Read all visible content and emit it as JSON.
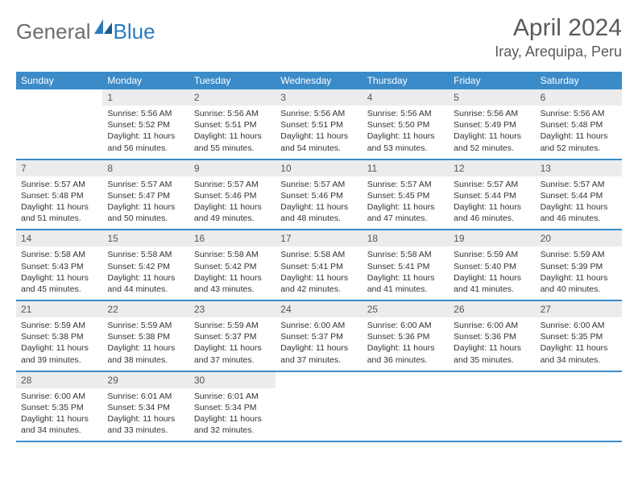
{
  "logo": {
    "general": "General",
    "blue": "Blue"
  },
  "title": "April 2024",
  "location": "Iray, Arequipa, Peru",
  "colors": {
    "header_bg": "#3b8bc9",
    "header_text": "#ffffff",
    "daynum_bg": "#ececec",
    "daynum_text": "#555555",
    "body_text": "#333333",
    "title_text": "#5a5a5a",
    "logo_general": "#6d6d6d",
    "logo_blue": "#2c7bbf",
    "week_border": "#3b8bc9"
  },
  "day_labels": [
    "Sunday",
    "Monday",
    "Tuesday",
    "Wednesday",
    "Thursday",
    "Friday",
    "Saturday"
  ],
  "weeks": [
    [
      null,
      {
        "n": "1",
        "sr": "Sunrise: 5:56 AM",
        "ss": "Sunset: 5:52 PM",
        "dl": "Daylight: 11 hours and 56 minutes."
      },
      {
        "n": "2",
        "sr": "Sunrise: 5:56 AM",
        "ss": "Sunset: 5:51 PM",
        "dl": "Daylight: 11 hours and 55 minutes."
      },
      {
        "n": "3",
        "sr": "Sunrise: 5:56 AM",
        "ss": "Sunset: 5:51 PM",
        "dl": "Daylight: 11 hours and 54 minutes."
      },
      {
        "n": "4",
        "sr": "Sunrise: 5:56 AM",
        "ss": "Sunset: 5:50 PM",
        "dl": "Daylight: 11 hours and 53 minutes."
      },
      {
        "n": "5",
        "sr": "Sunrise: 5:56 AM",
        "ss": "Sunset: 5:49 PM",
        "dl": "Daylight: 11 hours and 52 minutes."
      },
      {
        "n": "6",
        "sr": "Sunrise: 5:56 AM",
        "ss": "Sunset: 5:48 PM",
        "dl": "Daylight: 11 hours and 52 minutes."
      }
    ],
    [
      {
        "n": "7",
        "sr": "Sunrise: 5:57 AM",
        "ss": "Sunset: 5:48 PM",
        "dl": "Daylight: 11 hours and 51 minutes."
      },
      {
        "n": "8",
        "sr": "Sunrise: 5:57 AM",
        "ss": "Sunset: 5:47 PM",
        "dl": "Daylight: 11 hours and 50 minutes."
      },
      {
        "n": "9",
        "sr": "Sunrise: 5:57 AM",
        "ss": "Sunset: 5:46 PM",
        "dl": "Daylight: 11 hours and 49 minutes."
      },
      {
        "n": "10",
        "sr": "Sunrise: 5:57 AM",
        "ss": "Sunset: 5:46 PM",
        "dl": "Daylight: 11 hours and 48 minutes."
      },
      {
        "n": "11",
        "sr": "Sunrise: 5:57 AM",
        "ss": "Sunset: 5:45 PM",
        "dl": "Daylight: 11 hours and 47 minutes."
      },
      {
        "n": "12",
        "sr": "Sunrise: 5:57 AM",
        "ss": "Sunset: 5:44 PM",
        "dl": "Daylight: 11 hours and 46 minutes."
      },
      {
        "n": "13",
        "sr": "Sunrise: 5:57 AM",
        "ss": "Sunset: 5:44 PM",
        "dl": "Daylight: 11 hours and 46 minutes."
      }
    ],
    [
      {
        "n": "14",
        "sr": "Sunrise: 5:58 AM",
        "ss": "Sunset: 5:43 PM",
        "dl": "Daylight: 11 hours and 45 minutes."
      },
      {
        "n": "15",
        "sr": "Sunrise: 5:58 AM",
        "ss": "Sunset: 5:42 PM",
        "dl": "Daylight: 11 hours and 44 minutes."
      },
      {
        "n": "16",
        "sr": "Sunrise: 5:58 AM",
        "ss": "Sunset: 5:42 PM",
        "dl": "Daylight: 11 hours and 43 minutes."
      },
      {
        "n": "17",
        "sr": "Sunrise: 5:58 AM",
        "ss": "Sunset: 5:41 PM",
        "dl": "Daylight: 11 hours and 42 minutes."
      },
      {
        "n": "18",
        "sr": "Sunrise: 5:58 AM",
        "ss": "Sunset: 5:41 PM",
        "dl": "Daylight: 11 hours and 41 minutes."
      },
      {
        "n": "19",
        "sr": "Sunrise: 5:59 AM",
        "ss": "Sunset: 5:40 PM",
        "dl": "Daylight: 11 hours and 41 minutes."
      },
      {
        "n": "20",
        "sr": "Sunrise: 5:59 AM",
        "ss": "Sunset: 5:39 PM",
        "dl": "Daylight: 11 hours and 40 minutes."
      }
    ],
    [
      {
        "n": "21",
        "sr": "Sunrise: 5:59 AM",
        "ss": "Sunset: 5:38 PM",
        "dl": "Daylight: 11 hours and 39 minutes."
      },
      {
        "n": "22",
        "sr": "Sunrise: 5:59 AM",
        "ss": "Sunset: 5:38 PM",
        "dl": "Daylight: 11 hours and 38 minutes."
      },
      {
        "n": "23",
        "sr": "Sunrise: 5:59 AM",
        "ss": "Sunset: 5:37 PM",
        "dl": "Daylight: 11 hours and 37 minutes."
      },
      {
        "n": "24",
        "sr": "Sunrise: 6:00 AM",
        "ss": "Sunset: 5:37 PM",
        "dl": "Daylight: 11 hours and 37 minutes."
      },
      {
        "n": "25",
        "sr": "Sunrise: 6:00 AM",
        "ss": "Sunset: 5:36 PM",
        "dl": "Daylight: 11 hours and 36 minutes."
      },
      {
        "n": "26",
        "sr": "Sunrise: 6:00 AM",
        "ss": "Sunset: 5:36 PM",
        "dl": "Daylight: 11 hours and 35 minutes."
      },
      {
        "n": "27",
        "sr": "Sunrise: 6:00 AM",
        "ss": "Sunset: 5:35 PM",
        "dl": "Daylight: 11 hours and 34 minutes."
      }
    ],
    [
      {
        "n": "28",
        "sr": "Sunrise: 6:00 AM",
        "ss": "Sunset: 5:35 PM",
        "dl": "Daylight: 11 hours and 34 minutes."
      },
      {
        "n": "29",
        "sr": "Sunrise: 6:01 AM",
        "ss": "Sunset: 5:34 PM",
        "dl": "Daylight: 11 hours and 33 minutes."
      },
      {
        "n": "30",
        "sr": "Sunrise: 6:01 AM",
        "ss": "Sunset: 5:34 PM",
        "dl": "Daylight: 11 hours and 32 minutes."
      },
      null,
      null,
      null,
      null
    ]
  ]
}
